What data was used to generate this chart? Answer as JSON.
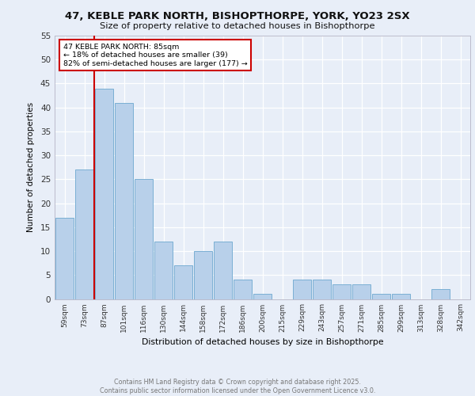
{
  "title1": "47, KEBLE PARK NORTH, BISHOPTHORPE, YORK, YO23 2SX",
  "title2": "Size of property relative to detached houses in Bishopthorpe",
  "xlabel": "Distribution of detached houses by size in Bishopthorpe",
  "ylabel": "Number of detached properties",
  "bar_labels": [
    "59sqm",
    "73sqm",
    "87sqm",
    "101sqm",
    "116sqm",
    "130sqm",
    "144sqm",
    "158sqm",
    "172sqm",
    "186sqm",
    "200sqm",
    "215sqm",
    "229sqm",
    "243sqm",
    "257sqm",
    "271sqm",
    "285sqm",
    "299sqm",
    "313sqm",
    "328sqm",
    "342sqm"
  ],
  "bar_values": [
    17,
    27,
    44,
    41,
    25,
    12,
    7,
    10,
    12,
    4,
    1,
    0,
    4,
    4,
    3,
    3,
    1,
    1,
    0,
    2,
    0
  ],
  "bar_color": "#b8d0ea",
  "bar_edge_color": "#7aafd4",
  "background_color": "#e8eef8",
  "grid_color": "#ffffff",
  "vline_color": "#cc0000",
  "vline_x_idx": 2,
  "annotation_text": "47 KEBLE PARK NORTH: 85sqm\n← 18% of detached houses are smaller (39)\n82% of semi-detached houses are larger (177) →",
  "annotation_box_color": "#ffffff",
  "annotation_box_edge": "#cc0000",
  "ylim": [
    0,
    55
  ],
  "yticks": [
    0,
    5,
    10,
    15,
    20,
    25,
    30,
    35,
    40,
    45,
    50,
    55
  ],
  "footer_text": "Contains HM Land Registry data © Crown copyright and database right 2025.\nContains public sector information licensed under the Open Government Licence v3.0.",
  "footer_color": "#777777"
}
